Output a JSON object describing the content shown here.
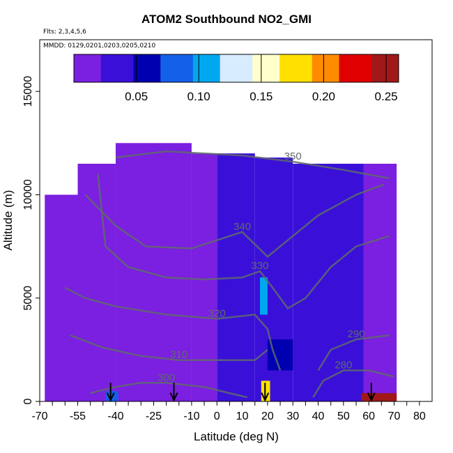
{
  "chart_data": {
    "type": "heatmap",
    "title": "ATOM2 Southbound NO2_GMI",
    "subtitle_lines": [
      "Flts: 2,3,4,5,6",
      "MMDD: 0129,0201,0203,0205,0210"
    ],
    "xlabel": "Latitude (deg N)",
    "ylabel": "Altitude (m)",
    "xlim": [
      -70,
      85
    ],
    "ylim": [
      0,
      17500
    ],
    "x_ticks": [
      -70,
      -55,
      -40,
      -25,
      -10,
      0,
      10,
      20,
      30,
      40,
      50,
      60,
      70,
      80
    ],
    "y_ticks": [
      0,
      5000,
      10000,
      15000
    ],
    "colorbar": {
      "range": [
        0,
        0.26
      ],
      "ticks": [
        0.05,
        0.1,
        0.15,
        0.2,
        0.25
      ],
      "tick_labels": [
        "0.05",
        "0.10",
        "0.15",
        "0.20",
        "0.25"
      ],
      "colors": [
        "#7b1fe0",
        "#3a10d8",
        "#0000b0",
        "#1460e8",
        "#00a8f0",
        "#d8ecff",
        "#ffffcc",
        "#ffe000",
        "#ff8c00",
        "#e00000",
        "#a01818"
      ]
    },
    "columns": [
      {
        "x0": -68,
        "x1": -55,
        "ytop": 10000,
        "val": 0.01
      },
      {
        "x0": -55,
        "x1": -40,
        "ytop": 11500,
        "val": 0.02
      },
      {
        "x0": -40,
        "x1": -10,
        "ytop": 12500,
        "val": 0.01
      },
      {
        "x0": -10,
        "x1": 0,
        "ytop": 12000,
        "val": 0.02
      },
      {
        "x0": 0,
        "x1": 15,
        "ytop": 12000,
        "val": 0.03
      },
      {
        "x0": 15,
        "x1": 30,
        "ytop": 11800,
        "val": 0.04
      },
      {
        "x0": 30,
        "x1": 58,
        "ytop": 11500,
        "val": 0.03
      },
      {
        "x0": 58,
        "x1": 71,
        "ytop": 11500,
        "val": 0.02
      }
    ],
    "hotspots": [
      {
        "x0": -44,
        "x1": -39,
        "y0": 0,
        "y1": 500,
        "val": 0.09
      },
      {
        "x0": 17.5,
        "x1": 21,
        "y0": 0,
        "y1": 1000,
        "val": 0.17
      },
      {
        "x0": 57,
        "x1": 71,
        "y0": 0,
        "y1": 400,
        "val": 0.24
      },
      {
        "x0": 17,
        "x1": 20,
        "y0": 4200,
        "y1": 6000,
        "val": 0.11
      },
      {
        "x0": 20,
        "x1": 30,
        "y0": 1500,
        "y1": 3000,
        "val": 0.06
      }
    ],
    "contours": [
      {
        "label": "350",
        "pts": [
          [
            -40,
            11800
          ],
          [
            -20,
            12100
          ],
          [
            10,
            11900
          ],
          [
            30,
            11600
          ],
          [
            50,
            11200
          ],
          [
            68,
            10800
          ]
        ]
      },
      {
        "label": "340",
        "pts": [
          [
            -52,
            10000
          ],
          [
            -40,
            8500
          ],
          [
            -28,
            7500
          ],
          [
            -10,
            7400
          ],
          [
            0,
            7800
          ],
          [
            10,
            8200
          ],
          [
            20,
            7000
          ],
          [
            30,
            8000
          ],
          [
            40,
            9000
          ],
          [
            55,
            10000
          ],
          [
            66,
            10500
          ]
        ]
      },
      {
        "label": "330",
        "pts": [
          [
            -47,
            11000
          ],
          [
            -44,
            7500
          ],
          [
            -35,
            6500
          ],
          [
            -20,
            6000
          ],
          [
            -5,
            5900
          ],
          [
            10,
            6000
          ],
          [
            17,
            6300
          ],
          [
            22,
            5500
          ],
          [
            28,
            4500
          ],
          [
            35,
            5000
          ],
          [
            45,
            6500
          ],
          [
            55,
            7500
          ],
          [
            68,
            8000
          ]
        ]
      },
      {
        "label": "320",
        "pts": [
          [
            -60,
            5500
          ],
          [
            -52,
            5000
          ],
          [
            -40,
            4600
          ],
          [
            -20,
            4200
          ],
          [
            0,
            4000
          ],
          [
            15,
            4200
          ],
          [
            20,
            3500
          ],
          [
            22,
            2500
          ],
          [
            25,
            1500
          ]
        ]
      },
      {
        "label": "310",
        "pts": [
          [
            -58,
            3200
          ],
          [
            -45,
            2600
          ],
          [
            -30,
            2200
          ],
          [
            -15,
            2000
          ],
          [
            0,
            2000
          ],
          [
            15,
            2000
          ],
          [
            20,
            2500
          ]
        ]
      },
      {
        "label": "300",
        "pts": [
          [
            -50,
            400
          ],
          [
            -40,
            700
          ],
          [
            -30,
            900
          ],
          [
            -20,
            900
          ],
          [
            -5,
            700
          ],
          [
            5,
            400
          ],
          [
            12,
            200
          ]
        ]
      },
      {
        "label": "290",
        "pts": [
          [
            40,
            1500
          ],
          [
            45,
            2500
          ],
          [
            55,
            3000
          ],
          [
            68,
            3200
          ]
        ]
      },
      {
        "label": "280",
        "pts": [
          [
            38,
            200
          ],
          [
            42,
            1000
          ],
          [
            50,
            1500
          ],
          [
            60,
            1500
          ],
          [
            70,
            1200
          ]
        ]
      }
    ],
    "arrows_x": [
      -42,
      -17,
      19,
      61
    ]
  }
}
